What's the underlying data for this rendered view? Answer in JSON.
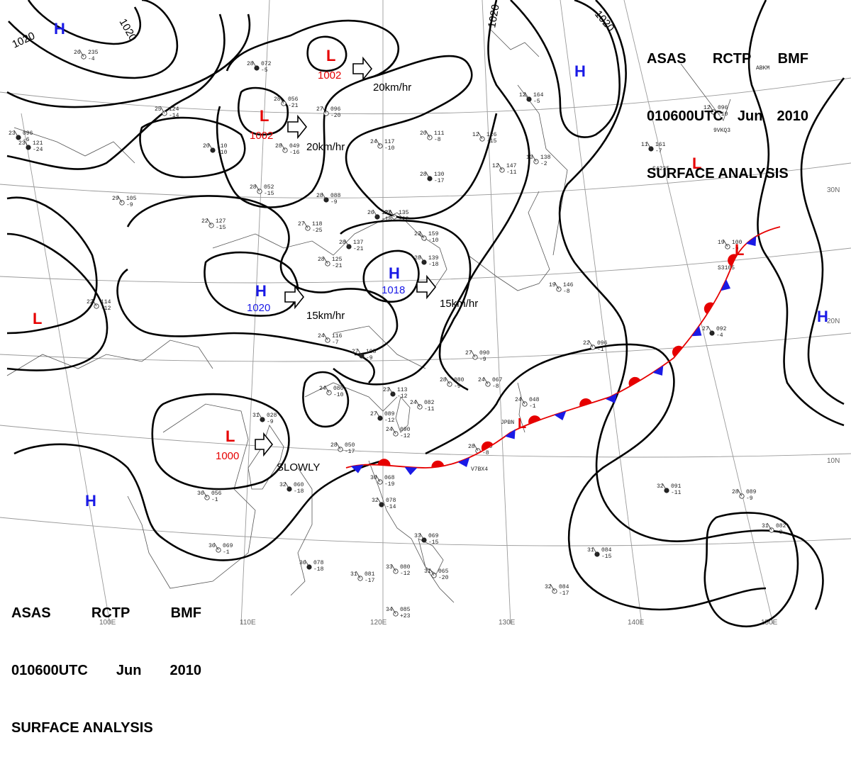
{
  "header_top": {
    "line1": [
      "ASAS",
      "RCTP",
      "BMF"
    ],
    "line2": [
      "010600UTC",
      "Jun",
      "2010"
    ],
    "line3": "SURFACE ANALYSIS"
  },
  "header_bottom": {
    "line1": [
      "ASAS",
      "RCTP",
      "BMF"
    ],
    "line2": [
      "010600UTC",
      "Jun",
      "2010"
    ],
    "line3": "SURFACE ANALYSIS"
  },
  "colors": {
    "high": "#1a1ae6",
    "low": "#e60000",
    "warm_front": "#e60000",
    "cold_front": "#1a1ae6",
    "isobar": "#000000",
    "grid": "#9a9a9a"
  },
  "lon_labels": [
    "100E",
    "110E",
    "120E",
    "130E",
    "140E",
    "150E"
  ],
  "lat_labels": [
    "30N",
    "20N",
    "10N"
  ],
  "isobar_labels": [
    "1020",
    "1020",
    "1020",
    "1020"
  ],
  "pressure_systems": [
    {
      "type": "H",
      "symbol": "H",
      "pressure": ""
    },
    {
      "type": "L",
      "symbol": "L",
      "pressure": "1002"
    },
    {
      "type": "L",
      "symbol": "L",
      "pressure": "1002"
    },
    {
      "type": "H",
      "symbol": "H",
      "pressure": ""
    },
    {
      "type": "H",
      "symbol": "H",
      "pressure": "1020"
    },
    {
      "type": "H",
      "symbol": "H",
      "pressure": "1018"
    },
    {
      "type": "L",
      "symbol": "L",
      "pressure": ""
    },
    {
      "type": "L",
      "symbol": "L",
      "pressure": "1000"
    },
    {
      "type": "H",
      "symbol": "H",
      "pressure": ""
    },
    {
      "type": "L",
      "symbol": "L",
      "pressure": ""
    },
    {
      "type": "H",
      "symbol": "H",
      "pressure": ""
    },
    {
      "type": "L",
      "symbol": "L",
      "pressure": ""
    },
    {
      "type": "L",
      "symbol": "L",
      "pressure": ""
    }
  ],
  "movements": [
    "20km/hr",
    "20km/hr",
    "15km/hr",
    "15km/hr",
    "SLOWLY"
  ],
  "stations": [
    {
      "t": "28",
      "p": "072",
      "d": "-5"
    },
    {
      "t": "28",
      "p": "056",
      "d": "-21"
    },
    {
      "t": "27",
      "p": "096",
      "d": "-20"
    },
    {
      "t": "20",
      "p": "110",
      "d": "-10"
    },
    {
      "t": "28",
      "p": "049",
      "d": "-16"
    },
    {
      "t": "28",
      "p": "052",
      "d": "-15"
    },
    {
      "t": "28",
      "p": "088",
      "d": "-9"
    },
    {
      "t": "24",
      "p": "117",
      "d": "-10"
    },
    {
      "t": "12",
      "p": "126",
      "d": "-15"
    },
    {
      "t": "28",
      "p": "130",
      "d": "-17"
    },
    {
      "t": "12",
      "p": "147",
      "d": "-11"
    },
    {
      "t": "13",
      "p": "138",
      "d": "-2"
    },
    {
      "t": "26",
      "p": "126",
      "d": "-18"
    },
    {
      "t": "27",
      "p": "135",
      "d": "-22"
    },
    {
      "t": "27",
      "p": "118",
      "d": "-25"
    },
    {
      "t": "28",
      "p": "137",
      "d": "-21"
    },
    {
      "t": "23",
      "p": "159",
      "d": "-10"
    },
    {
      "t": "28",
      "p": "125",
      "d": "-21"
    },
    {
      "t": "28",
      "p": "139",
      "d": "-18"
    },
    {
      "t": "22",
      "p": "127",
      "d": "-15"
    },
    {
      "t": "29",
      "p": "105",
      "d": "-9"
    },
    {
      "t": "23",
      "p": "121",
      "d": "-24"
    },
    {
      "t": "19",
      "p": "146",
      "d": "-8"
    },
    {
      "t": "24",
      "p": "116",
      "d": "-7"
    },
    {
      "t": "27",
      "p": "105",
      "d": "-9"
    },
    {
      "t": "27",
      "p": "090",
      "d": "-9"
    },
    {
      "t": "24",
      "p": "080",
      "d": "-10"
    },
    {
      "t": "23",
      "p": "113",
      "d": "-12"
    },
    {
      "t": "28",
      "p": "080",
      "d": "-9"
    },
    {
      "t": "24",
      "p": "082",
      "d": "-11"
    },
    {
      "t": "27",
      "p": "089",
      "d": "-12"
    },
    {
      "t": "24",
      "p": "090",
      "d": "-12"
    },
    {
      "t": "24",
      "p": "067",
      "d": "-8"
    },
    {
      "t": "31",
      "p": "028",
      "d": "-9"
    },
    {
      "t": "28",
      "p": "050",
      "d": "-17"
    },
    {
      "t": "28",
      "p": "050",
      "d": "-8"
    },
    {
      "t": "32",
      "p": "060",
      "d": "-18"
    },
    {
      "t": "36",
      "p": "056",
      "d": "-1"
    },
    {
      "t": "36",
      "p": "069",
      "d": "-1"
    },
    {
      "t": "36",
      "p": "078",
      "d": "-18"
    },
    {
      "t": "31",
      "p": "081",
      "d": "-17"
    },
    {
      "t": "30",
      "p": "068",
      "d": "-19"
    },
    {
      "t": "32",
      "p": "078",
      "d": "-14"
    },
    {
      "t": "33",
      "p": "080",
      "d": "-12"
    },
    {
      "t": "34",
      "p": "085",
      "d": "+23"
    },
    {
      "t": "32",
      "p": "091",
      "d": "-11"
    },
    {
      "t": "28",
      "p": "089",
      "d": "-9"
    },
    {
      "t": "31",
      "p": "082",
      "d": "-8"
    },
    {
      "t": "31",
      "p": "084",
      "d": "-15"
    },
    {
      "t": "32",
      "p": "084",
      "d": "-17"
    },
    {
      "t": "22",
      "p": "096",
      "d": "-1"
    },
    {
      "t": "27",
      "p": "092",
      "d": "-4"
    },
    {
      "t": "19",
      "p": "100",
      "d": "-9"
    },
    {
      "t": "12",
      "p": "096",
      "d": "-10"
    },
    {
      "t": "11",
      "p": "161",
      "d": "-7"
    },
    {
      "t": "26",
      "p": "235",
      "d": "-4"
    },
    {
      "t": "20",
      "p": "111",
      "d": "-8"
    },
    {
      "t": "23",
      "p": "096",
      "d": "-6"
    },
    {
      "t": "25",
      "p": "124",
      "d": "-14"
    },
    {
      "t": "22",
      "p": "114",
      "d": "-12"
    },
    {
      "t": "12",
      "p": "164",
      "d": "-5"
    },
    {
      "t": "24",
      "p": "048",
      "d": "-1"
    },
    {
      "t": "31",
      "p": "065",
      "d": "-20"
    },
    {
      "t": "33",
      "p": "069",
      "d": "-15"
    }
  ],
  "ship_ids": [
    "9VKQ3",
    "S4235",
    "JPBN",
    "V7BX4",
    "S3105",
    "ABKM"
  ]
}
